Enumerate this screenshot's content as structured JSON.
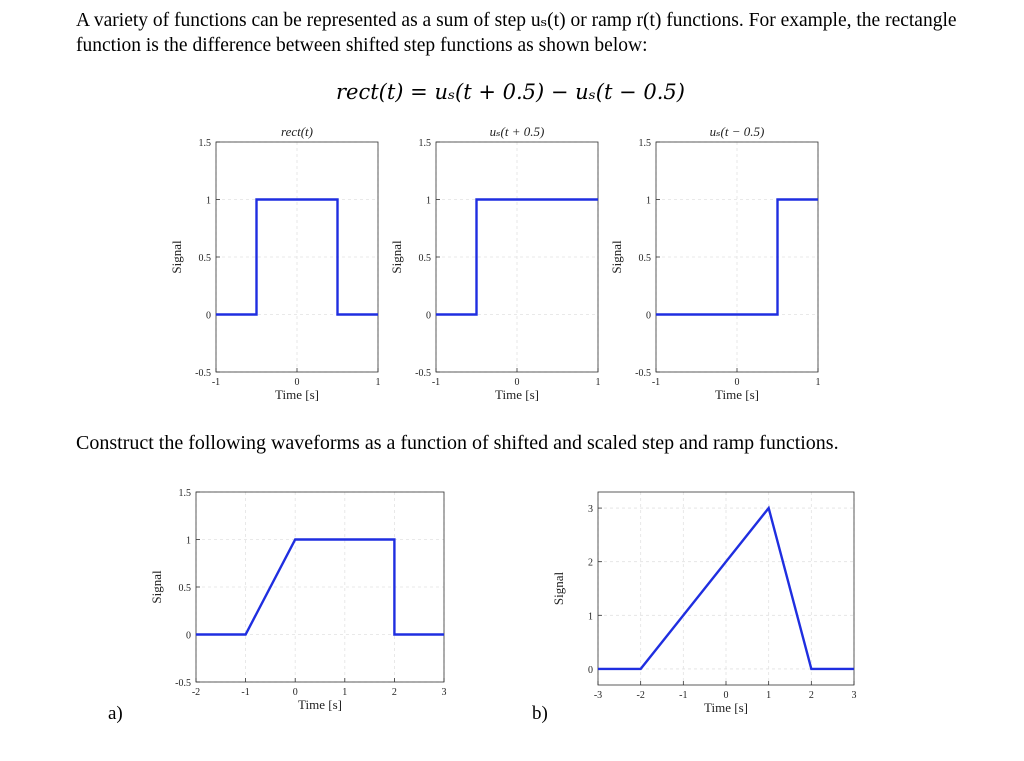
{
  "intro": {
    "paragraph": "A variety of functions can be represented as a sum of step uₛ(t) or ramp r(t) functions. For example, the rectangle function is the difference between shifted step functions as shown below:",
    "equation": "rect(t) = uₛ(t + 0.5) − uₛ(t − 0.5)"
  },
  "instruction": "Construct the following waveforms as a function of shifted and scaled step and ramp functions.",
  "labels": {
    "a": "a)",
    "b": "b)"
  },
  "chart_data": [
    {
      "type": "line",
      "title": "rect(t)",
      "xlabel": "Time [s]",
      "ylabel": "Signal",
      "xlim": [
        -1,
        1
      ],
      "ylim": [
        -0.5,
        1.5
      ],
      "xticks": [
        -1,
        0,
        1
      ],
      "yticks": [
        -0.5,
        0,
        0.5,
        1,
        1.5
      ],
      "grid": true,
      "series": [
        {
          "color": "#1f2ee0",
          "x": [
            -1,
            -0.5,
            -0.5,
            0.5,
            0.5,
            1
          ],
          "y": [
            0,
            0,
            1,
            1,
            0,
            0
          ]
        }
      ]
    },
    {
      "type": "line",
      "title": "uₛ(t + 0.5)",
      "xlabel": "Time [s]",
      "ylabel": "Signal",
      "xlim": [
        -1,
        1
      ],
      "ylim": [
        -0.5,
        1.5
      ],
      "xticks": [
        -1,
        0,
        1
      ],
      "yticks": [
        -0.5,
        0,
        0.5,
        1,
        1.5
      ],
      "grid": true,
      "series": [
        {
          "color": "#1f2ee0",
          "x": [
            -1,
            -0.5,
            -0.5,
            1
          ],
          "y": [
            0,
            0,
            1,
            1
          ]
        }
      ]
    },
    {
      "type": "line",
      "title": "uₛ(t − 0.5)",
      "xlabel": "Time [s]",
      "ylabel": "Signal",
      "xlim": [
        -1,
        1
      ],
      "ylim": [
        -0.5,
        1.5
      ],
      "xticks": [
        -1,
        0,
        1
      ],
      "yticks": [
        -0.5,
        0,
        0.5,
        1,
        1.5
      ],
      "grid": true,
      "series": [
        {
          "color": "#1f2ee0",
          "x": [
            -1,
            0.5,
            0.5,
            1
          ],
          "y": [
            0,
            0,
            1,
            1
          ]
        }
      ]
    },
    {
      "type": "line",
      "title": "",
      "xlabel": "Time [s]",
      "ylabel": "Signal",
      "xlim": [
        -2,
        3
      ],
      "ylim": [
        -0.5,
        1.5
      ],
      "xticks": [
        -2,
        -1,
        0,
        1,
        2,
        3
      ],
      "yticks": [
        -0.5,
        0,
        0.5,
        1,
        1.5
      ],
      "grid": true,
      "series": [
        {
          "color": "#1f2ee0",
          "x": [
            -2,
            -1,
            0,
            2,
            2,
            3
          ],
          "y": [
            0,
            0,
            1,
            1,
            0,
            0
          ]
        }
      ]
    },
    {
      "type": "line",
      "title": "",
      "xlabel": "Time [s]",
      "ylabel": "Signal",
      "xlim": [
        -3,
        3
      ],
      "ylim": [
        -0.3,
        3.3
      ],
      "xticks": [
        -3,
        -2,
        -1,
        0,
        1,
        2,
        3
      ],
      "yticks": [
        0,
        1,
        2,
        3
      ],
      "grid": true,
      "series": [
        {
          "color": "#1f2ee0",
          "x": [
            -3,
            -2,
            1,
            2,
            3
          ],
          "y": [
            0,
            0,
            3,
            0,
            0
          ]
        }
      ]
    }
  ]
}
